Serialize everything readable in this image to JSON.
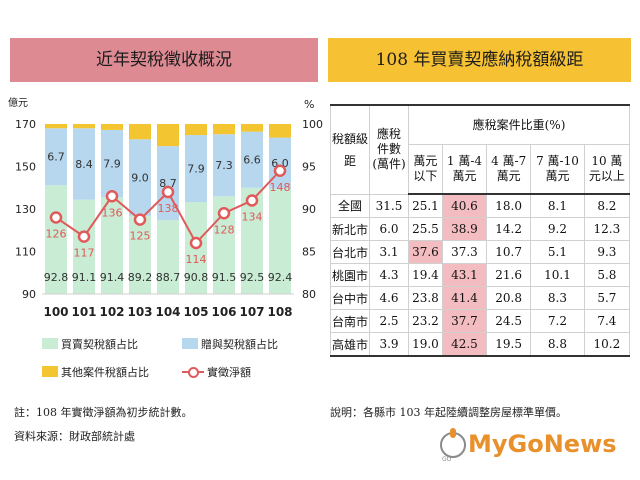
{
  "left_title": "近年契稅徵收概況",
  "right_title": "108 年買賣契應納稅額級距",
  "chart_data": {
    "type": "bar+line",
    "categories": [
      "100",
      "101",
      "102",
      "103",
      "104",
      "105",
      "106",
      "107",
      "108"
    ],
    "stack_percent": [
      {
        "name": "買賣契稅額占比",
        "values": [
          92.8,
          91.1,
          91.4,
          89.2,
          88.7,
          90.8,
          91.5,
          92.5,
          92.4
        ],
        "color": "#c8ecd4"
      },
      {
        "name": "贈與契稅額占比",
        "values": [
          6.7,
          8.4,
          7.9,
          9.0,
          8.7,
          7.9,
          7.3,
          6.6,
          6.0
        ],
        "color": "#b7d7ef"
      },
      {
        "name": "其他案件稅額占比",
        "values": [
          0.5,
          0.5,
          0.7,
          1.8,
          2.6,
          1.3,
          1.2,
          0.9,
          1.6
        ],
        "color": "#f3c531"
      }
    ],
    "line": {
      "name": "實徵淨額",
      "values": [
        126,
        117,
        136,
        125,
        138,
        114,
        128,
        134,
        148
      ],
      "color": "#e05a5a"
    },
    "y_left": {
      "unit": "億元",
      "ticks": [
        90,
        110,
        130,
        150,
        170
      ],
      "range": [
        90,
        170
      ]
    },
    "y_right": {
      "unit": "%",
      "ticks": [
        80,
        85,
        90,
        95,
        100
      ],
      "range": [
        80,
        100
      ]
    },
    "legend_position": "bottom"
  },
  "notes": [
    "註：108 年實徵淨額為初步統計數。",
    "資料來源：財政部統計處"
  ],
  "table": {
    "h_tax_class": "稅額級距",
    "h_count": [
      "應稅",
      "件數",
      "(萬件)"
    ],
    "h_share": "應稅案件比重(%)",
    "brackets": [
      [
        "萬元",
        "以下"
      ],
      [
        "1 萬-4",
        "萬元"
      ],
      [
        "4 萬-7",
        "萬元"
      ],
      [
        "7 萬-10",
        "萬元"
      ],
      [
        "10 萬",
        "元以上"
      ]
    ],
    "bracket_top": [
      "萬元",
      "1 萬-4",
      "4 萬-7",
      "7 萬-10",
      "10 萬"
    ],
    "bracket_bottom": [
      "以下",
      "萬元",
      "萬元",
      "萬元",
      "元以上"
    ],
    "rows": [
      {
        "city": "全國",
        "count": "31.5",
        "v": [
          "25.1",
          "40.6",
          "18.0",
          "8.1",
          "8.2"
        ],
        "hi": 1
      },
      {
        "city": "新北市",
        "count": "6.0",
        "v": [
          "25.5",
          "38.9",
          "14.2",
          "9.2",
          "12.3"
        ],
        "hi": 1
      },
      {
        "city": "台北市",
        "count": "3.1",
        "v": [
          "37.6",
          "37.3",
          "10.7",
          "5.1",
          "9.3"
        ],
        "hi": 0
      },
      {
        "city": "桃園市",
        "count": "4.3",
        "v": [
          "19.4",
          "43.1",
          "21.6",
          "10.1",
          "5.8"
        ],
        "hi": 1
      },
      {
        "city": "台中市",
        "count": "4.6",
        "v": [
          "23.8",
          "41.4",
          "20.8",
          "8.3",
          "5.7"
        ],
        "hi": 1
      },
      {
        "city": "台南市",
        "count": "2.5",
        "v": [
          "23.2",
          "37.7",
          "24.5",
          "7.2",
          "7.4"
        ],
        "hi": 1
      },
      {
        "city": "高雄市",
        "count": "3.9",
        "v": [
          "19.0",
          "42.5",
          "19.5",
          "8.8",
          "10.2"
        ],
        "hi": 1
      }
    ],
    "highlight_color": "#f2bcc0"
  },
  "right_note": "說明：各縣市 103 年起陸續調整房屋標準單價。",
  "logo": {
    "text": "MyGoNews",
    "sub": "GO",
    "color": "#e8902c"
  }
}
